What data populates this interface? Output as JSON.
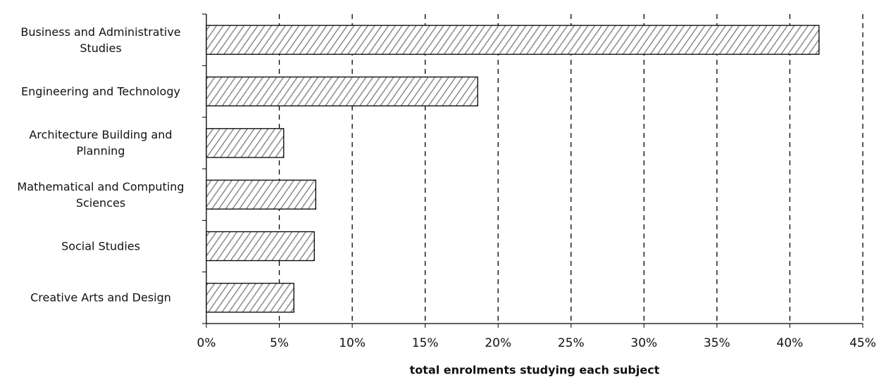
{
  "chart_data": {
    "type": "bar",
    "orientation": "horizontal",
    "x_label": "total enrolments studying each subject",
    "categories": [
      "Business and Administrative Studies",
      "Engineering and Technology",
      "Architecture Building and Planning",
      "Mathematical and Computing Sciences",
      "Social Studies",
      "Creative Arts and Design"
    ],
    "values": [
      42,
      18.6,
      5.3,
      7.5,
      7.4,
      6.0
    ],
    "color": "#8a8a8a",
    "xlim": [
      0,
      45
    ],
    "xticks": [
      {
        "value": 0,
        "label": "0%"
      },
      {
        "value": 5,
        "label": "5%"
      },
      {
        "value": 10,
        "label": "10%"
      },
      {
        "value": 15,
        "label": "15%"
      },
      {
        "value": 20,
        "label": "20%"
      },
      {
        "value": 25,
        "label": "25%"
      },
      {
        "value": 30,
        "label": "30%"
      },
      {
        "value": 35,
        "label": "35%"
      },
      {
        "value": 40,
        "label": "40%"
      },
      {
        "value": 45,
        "label": "45%"
      }
    ],
    "grid": true
  }
}
